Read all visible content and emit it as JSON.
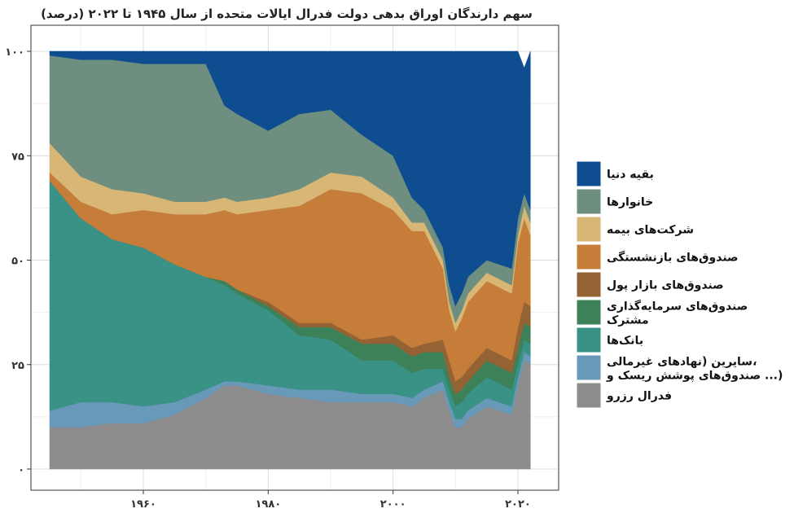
{
  "chart_data": {
    "type": "area",
    "stacked": true,
    "title": "سهم دارندگان اوراق بدهی دولت فدرال ایالات متحده از سال ۱۹۴۵ تا ۲۰۲۲ (درصد)",
    "xlabel": "",
    "ylabel": "",
    "xlim": [
      1944,
      2024
    ],
    "ylim": [
      0,
      100
    ],
    "x_ticks": [
      1960,
      1980,
      2000,
      2020
    ],
    "x_tick_labels": [
      "۱۹۶۰",
      "۱۹۸۰",
      "۲۰۰۰",
      "۲۰۲۰"
    ],
    "y_ticks": [
      0,
      25,
      50,
      75,
      100
    ],
    "y_tick_labels": [
      "۰",
      "۲۵",
      "۵۰",
      "۷۵",
      "۱۰۰"
    ],
    "grid": true,
    "legend_position": "right",
    "x": [
      1945,
      1950,
      1955,
      1960,
      1965,
      1970,
      1973,
      1975,
      1980,
      1985,
      1990,
      1995,
      2000,
      2003,
      2005,
      2008,
      2009,
      2010,
      2011,
      2012,
      2015,
      2019,
      2020,
      2021,
      2022
    ],
    "series": [
      {
        "name": "فدرال رزرو",
        "color": "#8c8c8c",
        "values": [
          10,
          10,
          11,
          11,
          13,
          17,
          20,
          20,
          18,
          17,
          16,
          16,
          16,
          15,
          17,
          19,
          14,
          10,
          10,
          12,
          15,
          13,
          20,
          26,
          25
        ]
      },
      {
        "name": "سایرین (نهادهای غیرمالی، صندوق‌های پوشش ریسک و ...)",
        "color": "#6899b8",
        "values": [
          4,
          6,
          5,
          4,
          3,
          2,
          1,
          1,
          2,
          2,
          3,
          2,
          2,
          2,
          2,
          2,
          2,
          2,
          2,
          2,
          2,
          2,
          2,
          2,
          2
        ]
      },
      {
        "name": "بانک‌ها",
        "color": "#3a9186",
        "values": [
          55,
          44,
          39,
          38,
          33,
          27,
          23,
          21,
          18,
          13,
          12,
          8,
          8,
          6,
          5,
          3,
          3,
          3,
          4,
          4,
          5,
          4,
          3,
          3,
          3
        ]
      },
      {
        "name": "صندوق‌های سرمایه‌گذاری مشترک",
        "color": "#3c8158",
        "values": [
          0,
          0,
          0,
          0,
          0,
          0,
          1,
          1,
          1,
          2,
          3,
          4,
          4,
          4,
          4,
          4,
          3,
          3,
          3,
          3,
          4,
          4,
          4,
          4,
          4
        ]
      },
      {
        "name": "صندوق‌های بازار پول",
        "color": "#946233",
        "values": [
          0,
          0,
          0,
          0,
          0,
          0,
          0,
          0,
          1,
          1,
          1,
          1,
          2,
          2,
          2,
          3,
          4,
          3,
          3,
          3,
          3,
          3,
          5,
          5,
          5
        ]
      },
      {
        "name": "صندوق‌های بازنشستگی",
        "color": "#c67d3a",
        "values": [
          2,
          4,
          6,
          9,
          12,
          15,
          17,
          18,
          22,
          28,
          32,
          35,
          30,
          28,
          27,
          17,
          12,
          12,
          14,
          16,
          16,
          16,
          20,
          20,
          17
        ]
      },
      {
        "name": "شرکت‌های بیمه",
        "color": "#d8b676",
        "values": [
          7,
          6,
          6,
          4,
          3,
          3,
          3,
          3,
          3,
          4,
          4,
          4,
          3,
          2,
          2,
          2,
          2,
          2,
          2,
          2,
          2,
          2,
          2,
          3,
          3
        ]
      },
      {
        "name": "خانوارها",
        "color": "#6e8f80",
        "values": [
          21,
          28,
          31,
          31,
          33,
          33,
          22,
          21,
          16,
          18,
          15,
          10,
          10,
          6,
          3,
          3,
          4,
          4,
          4,
          4,
          3,
          4,
          4,
          3,
          3
        ]
      },
      {
        "name": "بقیه دنیا",
        "color": "#0e4d8f",
        "values": [
          1,
          2,
          2,
          3,
          3,
          3,
          13,
          15,
          19,
          15,
          14,
          20,
          25,
          35,
          38,
          47,
          56,
          61,
          58,
          54,
          50,
          52,
          40,
          30,
          38
        ]
      }
    ]
  }
}
